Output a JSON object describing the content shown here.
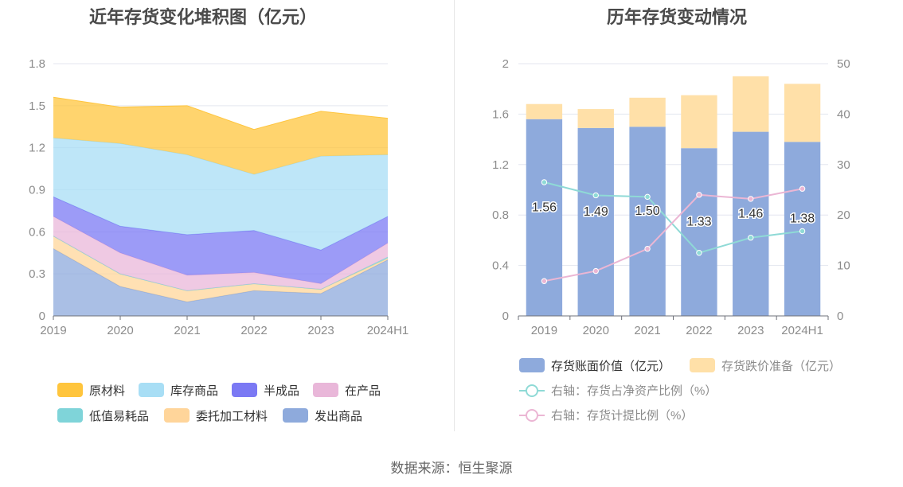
{
  "source_label": "数据来源：恒生聚源",
  "chart_data": [
    {
      "type": "area",
      "stacked": true,
      "title": "近年存货变化堆积图（亿元）",
      "categories": [
        "2019",
        "2020",
        "2021",
        "2022",
        "2023",
        "2024H1"
      ],
      "ylim": [
        0,
        1.8
      ],
      "yticks": [
        "0",
        "0.3",
        "0.6",
        "0.9",
        "1.2",
        "1.5",
        "1.8"
      ],
      "grid": true,
      "legend_position": "bottom",
      "series": [
        {
          "name": "发出商品",
          "color": "#8eaadc",
          "values": [
            0.48,
            0.21,
            0.1,
            0.18,
            0.16,
            0.4
          ]
        },
        {
          "name": "委托加工材料",
          "color": "#ffd59a",
          "values": [
            0.09,
            0.09,
            0.08,
            0.05,
            0.03,
            0.01
          ]
        },
        {
          "name": "低值易耗品",
          "color": "#7fd4d9",
          "values": [
            0.0,
            0.0,
            0.0,
            0.0,
            0.0,
            0.01
          ]
        },
        {
          "name": "在产品",
          "color": "#e9b7d9",
          "values": [
            0.14,
            0.15,
            0.11,
            0.08,
            0.04,
            0.1
          ]
        },
        {
          "name": "半成品",
          "color": "#7b79f4",
          "values": [
            0.14,
            0.19,
            0.29,
            0.3,
            0.24,
            0.19
          ]
        },
        {
          "name": "库存商品",
          "color": "#a8def5",
          "values": [
            0.42,
            0.59,
            0.57,
            0.4,
            0.67,
            0.44
          ]
        },
        {
          "name": "原材料",
          "color": "#ffc53d",
          "values": [
            0.29,
            0.26,
            0.35,
            0.32,
            0.32,
            0.26
          ]
        }
      ],
      "legend_order": [
        "原材料",
        "库存商品",
        "半成品",
        "在产品",
        "低值易耗品",
        "委托加工材料",
        "发出商品"
      ]
    },
    {
      "type": "bar",
      "title": "历年存货变动情况",
      "categories": [
        "2019",
        "2020",
        "2021",
        "2022",
        "2023",
        "2024H1"
      ],
      "ylim": [
        0,
        2
      ],
      "yticks": [
        "0",
        "0.4",
        "0.8",
        "1.2",
        "1.6",
        "2"
      ],
      "y2lim": [
        0,
        50
      ],
      "y2ticks": [
        "0",
        "10",
        "20",
        "30",
        "40",
        "50"
      ],
      "grid": true,
      "legend_position": "bottom",
      "bar_series": [
        {
          "name": "存货账面价值（亿元）",
          "color": "#8eaadc",
          "values": [
            1.56,
            1.49,
            1.5,
            1.33,
            1.46,
            1.38
          ],
          "labels": [
            "1.56",
            "1.49",
            "1.50",
            "1.33",
            "1.46",
            "1.38"
          ]
        },
        {
          "name": "存货跌价准备（亿元）",
          "color": "#ffe0a8",
          "values": [
            0.12,
            0.15,
            0.23,
            0.42,
            0.44,
            0.46
          ]
        }
      ],
      "line_series": [
        {
          "name": "右轴：存货占净资产比例（%）",
          "color": "#8fdad6",
          "axis": "right",
          "values": [
            26.5,
            23.9,
            23.6,
            12.5,
            15.5,
            16.8
          ]
        },
        {
          "name": "右轴：存货计提比例（%）",
          "color": "#ebb6d4",
          "axis": "right",
          "values": [
            6.9,
            8.9,
            13.3,
            24.0,
            23.2,
            25.2
          ]
        }
      ]
    }
  ]
}
